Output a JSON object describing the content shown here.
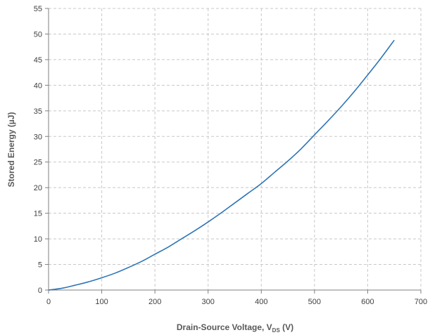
{
  "chart_data": {
    "type": "line",
    "title": "",
    "xlabel_main": "Drain-Source Voltage, V",
    "xlabel_sub": "DS",
    "xlabel_tail": " (V)",
    "ylabel": "Stored Energy (µJ)",
    "xlim": [
      0,
      700
    ],
    "ylim": [
      0,
      55
    ],
    "xticks": [
      0,
      100,
      200,
      300,
      400,
      500,
      600,
      700
    ],
    "yticks": [
      0,
      5,
      10,
      15,
      20,
      25,
      30,
      35,
      40,
      45,
      50,
      55
    ],
    "grid": true,
    "colors": {
      "line": "#2e75b6",
      "grid": "#c8c8c8",
      "axis": "#7f7f7f"
    },
    "series": [
      {
        "x": [
          0,
          25,
          50,
          75,
          100,
          125,
          150,
          175,
          200,
          225,
          250,
          275,
          300,
          325,
          350,
          375,
          400,
          425,
          450,
          475,
          500,
          525,
          550,
          575,
          600,
          625,
          650
        ],
        "y": [
          0,
          0.35,
          0.95,
          1.6,
          2.4,
          3.3,
          4.4,
          5.6,
          7.0,
          8.4,
          10.0,
          11.6,
          13.3,
          15.1,
          17.0,
          18.9,
          20.8,
          23.0,
          25.2,
          27.6,
          30.3,
          33.0,
          35.8,
          38.8,
          42.0,
          45.3,
          48.8
        ]
      }
    ]
  }
}
